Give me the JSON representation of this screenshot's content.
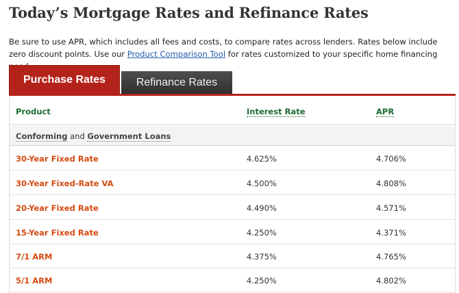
{
  "page": {
    "title": "Today’s Mortgage Rates and Refinance Rates",
    "intro_1": "Be sure to use APR, which includes all fees and costs, to compare rates across lenders. Rates below include zero discount points. Use our ",
    "intro_link": "Product Comparison Tool",
    "intro_2": " for rates customized to your specific home financing need."
  },
  "tabs": {
    "purchase": "Purchase Rates",
    "refinance": "Refinance Rates"
  },
  "table": {
    "headers": {
      "product": "Product",
      "rate": "Interest Rate",
      "apr": "APR"
    },
    "group": {
      "term1": "Conforming",
      "and": " and ",
      "term2": "Government Loans"
    },
    "rows": [
      {
        "product": "30-Year Fixed Rate",
        "rate": "4.625%",
        "apr": "4.706%"
      },
      {
        "product": "30-Year Fixed-Rate VA",
        "rate": "4.500%",
        "apr": "4.808%"
      },
      {
        "product": "20-Year Fixed Rate",
        "rate": "4.490%",
        "apr": "4.571%"
      },
      {
        "product": "15-Year Fixed Rate",
        "rate": "4.250%",
        "apr": "4.371%"
      },
      {
        "product": "7/1 ARM",
        "rate": "4.375%",
        "apr": "4.765%"
      },
      {
        "product": "5/1 ARM",
        "rate": "4.250%",
        "apr": "4.802%"
      }
    ]
  },
  "colors": {
    "accent_red": "#b4231a",
    "product_orange": "#d44a12",
    "header_green": "#1d6b2f",
    "link_blue": "#1f5ba8"
  }
}
